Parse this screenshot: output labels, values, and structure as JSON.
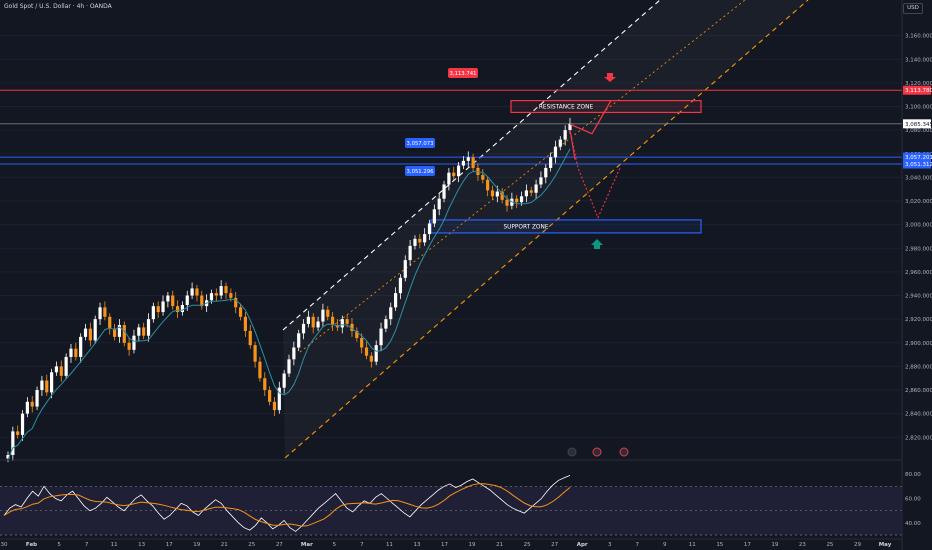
{
  "header": {
    "title": "Gold Spot / U.S. Dollar · 4h · OANDA",
    "currency": "USD"
  },
  "colors": {
    "background": "#131722",
    "up_candle": "#ffffff",
    "down_candle": "#f7931a",
    "ma_line": "#2c8fa3",
    "resistance": "#f23645",
    "support": "#2962ff",
    "channel_upper": "#ffffff",
    "channel_lower": "#ff9800",
    "rsi_line": "#ffffff",
    "rsi_ma": "#f7931a",
    "target_arrow": "#f23645",
    "support_arrow": "#089981"
  },
  "chart_data": [
    {
      "type": "candlestick",
      "instrument": "Gold Spot / U.S. Dollar",
      "timeframe": "4h",
      "source": "OANDA",
      "ylim": [
        2805,
        3180
      ],
      "y_ticks": [
        "2,820.000",
        "2,840.000",
        "2,860.000",
        "2,880.000",
        "2,900.000",
        "2,920.000",
        "2,940.000",
        "2,960.000",
        "2,980.000",
        "3,000.000",
        "3,020.000",
        "3,040.000",
        "3,060.000",
        "3,080.000",
        "3,100.000",
        "3,120.000",
        "3,140.000",
        "3,160.000"
      ],
      "x_ticks": [
        "30",
        "Feb",
        "5",
        "7",
        "11",
        "13",
        "17",
        "19",
        "21",
        "25",
        "27",
        "Mar",
        "5",
        "7",
        "11",
        "13",
        "17",
        "19",
        "21",
        "25",
        "27",
        "Apr",
        "3",
        "7",
        "9",
        "11",
        "15",
        "17",
        "19",
        "23",
        "25",
        "29",
        "May"
      ],
      "close_path": [
        2805,
        2825,
        2822,
        2840,
        2850,
        2846,
        2860,
        2868,
        2858,
        2875,
        2880,
        2872,
        2888,
        2895,
        2888,
        2905,
        2912,
        2902,
        2920,
        2930,
        2922,
        2912,
        2905,
        2915,
        2900,
        2894,
        2906,
        2913,
        2906,
        2920,
        2931,
        2926,
        2935,
        2940,
        2931,
        2926,
        2932,
        2940,
        2946,
        2940,
        2931,
        2936,
        2942,
        2940,
        2948,
        2942,
        2938,
        2930,
        2922,
        2910,
        2898,
        2884,
        2870,
        2860,
        2850,
        2843,
        2862,
        2874,
        2886,
        2896,
        2908,
        2916,
        2922,
        2913,
        2918,
        2928,
        2922,
        2915,
        2913,
        2920,
        2916,
        2910,
        2904,
        2896,
        2889,
        2884,
        2898,
        2912,
        2920,
        2930,
        2942,
        2955,
        2970,
        2982,
        2988,
        2985,
        2992,
        3001,
        3013,
        3022,
        3034,
        3044,
        3041,
        3050,
        3054,
        3057,
        3048,
        3042,
        3038,
        3029,
        3024,
        3028,
        3021,
        3016,
        3022,
        3019,
        3024,
        3029,
        3027,
        3034,
        3040,
        3048,
        3057,
        3066,
        3072,
        3080,
        3085.345
      ],
      "price_labels": [
        {
          "text": "3,113.741",
          "price": 3113.741
        },
        {
          "text": "3,057.073",
          "price": 3057.073
        },
        {
          "text": "3,051.296",
          "price": 3051.296
        }
      ],
      "axis_labels": [
        {
          "text": "3,113.780",
          "price": 3113.78,
          "kind": "resistance"
        },
        {
          "text": "3,085.345",
          "price": 3085.345,
          "kind": "last"
        },
        {
          "text": "3,057.201",
          "price": 3057.201,
          "kind": "support"
        },
        {
          "text": "3,051.312",
          "price": 3051.312,
          "kind": "support"
        }
      ],
      "horizontal_levels": [
        {
          "price": 3113.78,
          "color": "#f23645"
        },
        {
          "price": 3085.345,
          "color": "#787b86"
        },
        {
          "price": 3057.201,
          "color": "#2962ff"
        },
        {
          "price": 3051.312,
          "color": "#2962ff"
        }
      ],
      "zones": [
        {
          "label": "RESISTANCE ZONE",
          "top": 3105,
          "bottom": 3095
        },
        {
          "label": "SUPPORT ZONE",
          "top": 3004,
          "bottom": 2993
        }
      ]
    },
    {
      "type": "line",
      "indicator": "RSI",
      "ylim": [
        30,
        90
      ],
      "y_ticks": [
        "80.00",
        "60.00",
        "40.00"
      ],
      "bands": [
        70,
        50,
        30
      ],
      "values": [
        46,
        52,
        55,
        53,
        60,
        66,
        62,
        70,
        64,
        60,
        58,
        63,
        66,
        60,
        54,
        50,
        52,
        56,
        61,
        57,
        53,
        50,
        55,
        60,
        63,
        58,
        54,
        48,
        43,
        46,
        51,
        56,
        54,
        49,
        46,
        51,
        55,
        59,
        56,
        50,
        45,
        40,
        36,
        34,
        38,
        44,
        40,
        35,
        38,
        42,
        36,
        33,
        37,
        42,
        47,
        52,
        56,
        60,
        64,
        58,
        52,
        49,
        54,
        58,
        56,
        61,
        64,
        60,
        56,
        52,
        48,
        45,
        50,
        55,
        59,
        63,
        67,
        70,
        72,
        69,
        71,
        74,
        76,
        73,
        70,
        67,
        63,
        59,
        55,
        52,
        50,
        48,
        52,
        56,
        60,
        66,
        71,
        75,
        77,
        79
      ]
    }
  ],
  "annotations": {
    "resistance_label": "RESISTANCE ZONE",
    "support_label": "SUPPORT ZONE"
  }
}
